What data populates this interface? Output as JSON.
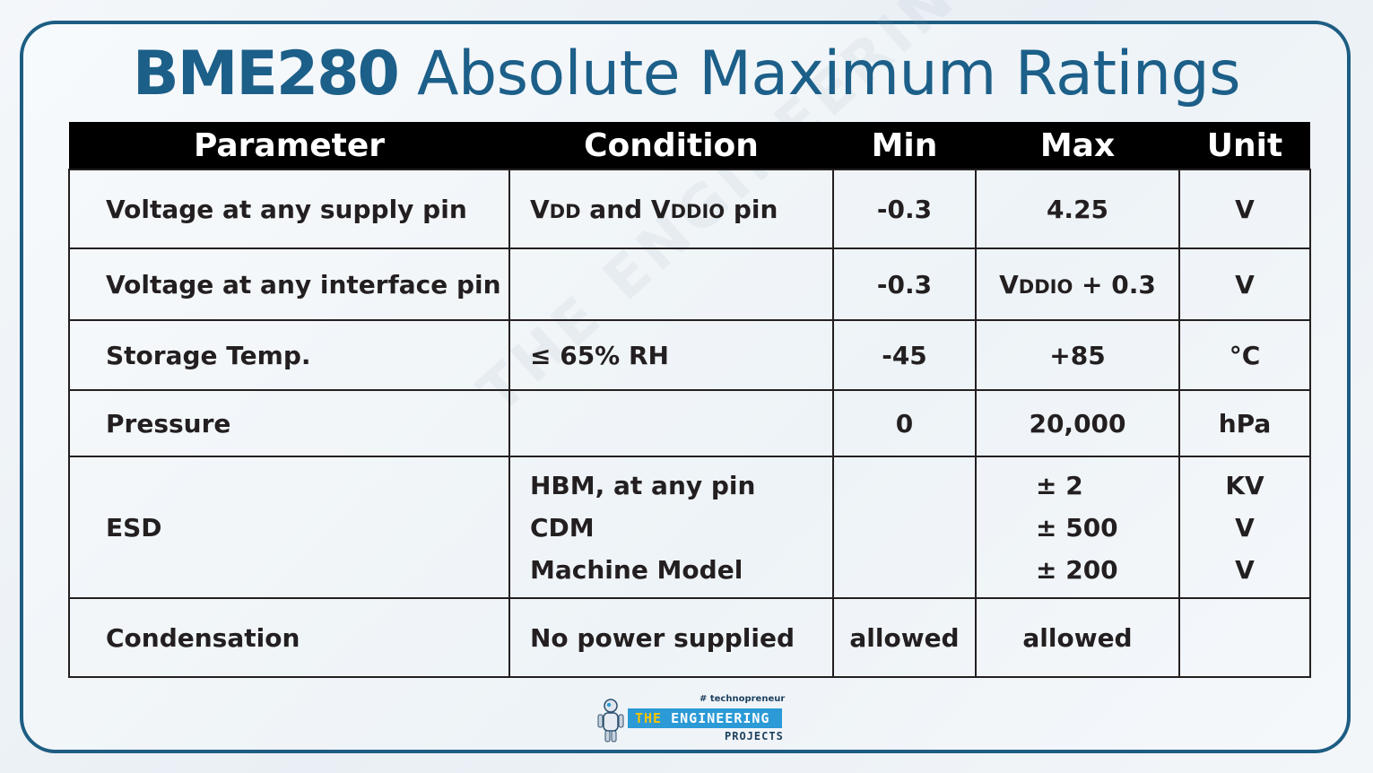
{
  "title": {
    "bold": "BME280",
    "rest": "Absolute Maximum Ratings"
  },
  "headers": [
    "Parameter",
    "Condition",
    "Min",
    "Max",
    "Unit"
  ],
  "rows": [
    {
      "parameter": "Voltage at any supply pin",
      "condition_parts": [
        "V",
        "DD",
        " and V",
        "DDIO",
        " pin"
      ],
      "min": "-0.3",
      "max": "4.25",
      "unit": "V"
    },
    {
      "parameter": "Voltage at any interface pin",
      "condition": "",
      "min": "-0.3",
      "max_parts": [
        "V",
        "DDIO",
        " + 0.3"
      ],
      "unit": "V"
    },
    {
      "parameter": "Storage Temp.",
      "condition": "≤ 65% RH",
      "min": "-45",
      "max": "+85",
      "unit": "°C"
    },
    {
      "parameter": "Pressure",
      "condition": "",
      "min": "0",
      "max": "20,000",
      "unit": "hPa"
    },
    {
      "parameter": "ESD",
      "conditions": [
        "HBM, at any pin",
        "CDM",
        "Machine Model"
      ],
      "min": "",
      "maxes": [
        "± 2",
        "± 500",
        "± 200"
      ],
      "units": [
        "KV",
        "V",
        "V"
      ]
    },
    {
      "parameter": "Condensation",
      "condition": "No power supplied",
      "min": "allowed",
      "max": "allowed",
      "unit": ""
    }
  ],
  "watermark": "THE ENGINEERING PROJECTS",
  "logo": {
    "tag": "# technopreneur",
    "the": "THE",
    "name": "ENGINEERING",
    "sub": "PROJECTS"
  },
  "colors": {
    "title": "#1c5f89",
    "frame": "#1d5d83",
    "header_bg": "#000000",
    "logo_bar": "#2b9ad6"
  }
}
